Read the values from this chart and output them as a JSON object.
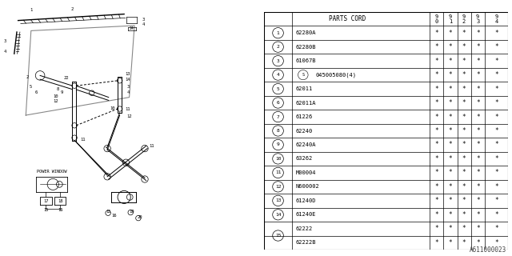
{
  "diagram_id": "A611000023",
  "parts": [
    {
      "num": 1,
      "code": "62280A",
      "special": false
    },
    {
      "num": 2,
      "code": "62280B",
      "special": false
    },
    {
      "num": 3,
      "code": "61067B",
      "special": false
    },
    {
      "num": 4,
      "code": "045005080(4)",
      "special": true
    },
    {
      "num": 5,
      "code": "62011",
      "special": false
    },
    {
      "num": 6,
      "code": "62011A",
      "special": false
    },
    {
      "num": 7,
      "code": "61226",
      "special": false
    },
    {
      "num": 8,
      "code": "62240",
      "special": false
    },
    {
      "num": 9,
      "code": "62240A",
      "special": false
    },
    {
      "num": 10,
      "code": "63262",
      "special": false
    },
    {
      "num": 11,
      "code": "M00004",
      "special": false
    },
    {
      "num": 12,
      "code": "N600002",
      "special": false
    },
    {
      "num": 13,
      "code": "61240D",
      "special": false
    },
    {
      "num": 14,
      "code": "61240E",
      "special": false
    },
    {
      "num": 15,
      "code": "62222",
      "special": false,
      "sub_code": "62222B"
    }
  ],
  "years": [
    "9\n0",
    "9\n1",
    "9\n2",
    "9\n3",
    "9\n4"
  ],
  "bg_color": "#ffffff",
  "line_color": "#000000",
  "text_color": "#000000"
}
